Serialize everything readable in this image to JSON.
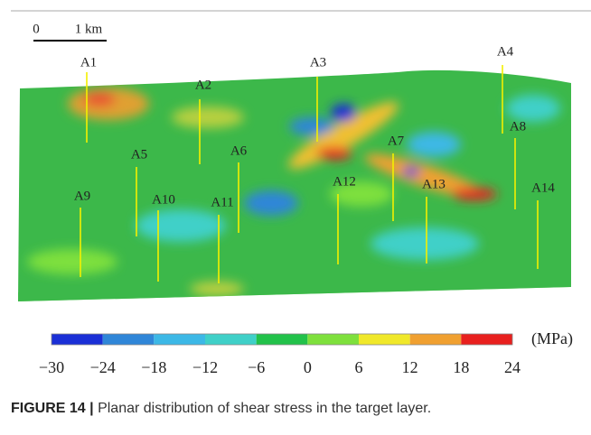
{
  "scale_bar": {
    "start": "0",
    "length": "1 km"
  },
  "wells": [
    "A1",
    "A2",
    "A3",
    "A4",
    "A5",
    "A6",
    "A7",
    "A8",
    "A9",
    "A10",
    "A11",
    "A12",
    "A13",
    "A14"
  ],
  "colorbar": {
    "ticks": [
      {
        "value": -30,
        "label": "−30"
      },
      {
        "value": -24,
        "label": "−24"
      },
      {
        "value": -18,
        "label": "−18"
      },
      {
        "value": -12,
        "label": "−12"
      },
      {
        "value": -6,
        "label": "−6"
      },
      0,
      6,
      12,
      18,
      24
    ],
    "unit": "(MPa)"
  },
  "caption": {
    "label": "FIGURE 14 |",
    "text": "Planar distribution of shear stress in the target layer."
  }
}
